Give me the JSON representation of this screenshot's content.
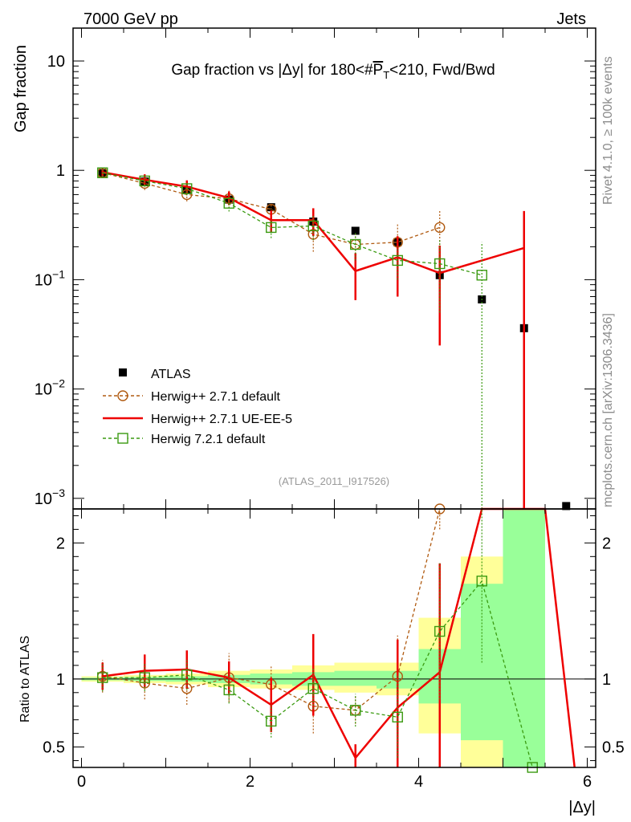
{
  "header": {
    "left": "7000 GeV pp",
    "right": "Jets"
  },
  "side_labels": {
    "top": "Rivet 4.1.0, ≥ 100k events",
    "bottom": "mcplots.cern.ch [arXiv:1306.3436]"
  },
  "watermark": "(ATLAS_2011_I917526)",
  "colors": {
    "atlas": "#000000",
    "herwig_pp_default": "#b05a10",
    "herwig_pp_ue": "#ee0000",
    "herwig7": "#3a9a10",
    "band_yellow": "#ffff99",
    "band_green": "#99ff99"
  },
  "chart_data": [
    {
      "type": "scatter",
      "panel": "main",
      "title_parts": {
        "pre": "Gap fraction vs |Δy| for 180<#",
        "pt": "P",
        "sub": "T",
        "post": "<210, Fwd/Bwd"
      },
      "ylabel": "Gap fraction",
      "yscale": "log",
      "ylim": [
        0.0008,
        20
      ],
      "xlim": [
        -0.1,
        6.1
      ],
      "y_ticks": [
        {
          "v": 10,
          "base": "10",
          "exp": ""
        },
        {
          "v": 1,
          "base": "1",
          "exp": ""
        },
        {
          "v": 0.1,
          "base": "10",
          "exp": "−1"
        },
        {
          "v": 0.01,
          "base": "10",
          "exp": "−2"
        },
        {
          "v": 0.001,
          "base": "10",
          "exp": "−3"
        }
      ],
      "series": [
        {
          "name": "ATLAS",
          "style": "data",
          "x": [
            0.25,
            0.75,
            1.25,
            1.75,
            2.25,
            2.75,
            3.25,
            3.75,
            4.25,
            4.75,
            5.25,
            5.75
          ],
          "y": [
            0.94,
            0.79,
            0.66,
            0.54,
            0.46,
            0.34,
            0.28,
            0.22,
            0.11,
            0.066,
            0.036,
            0.00085
          ]
        },
        {
          "name": "Herwig++ 2.7.1 default",
          "style": "mc-circle",
          "x": [
            0.25,
            0.75,
            1.25,
            1.75,
            2.25,
            2.75,
            3.25,
            3.75,
            4.25
          ],
          "y": [
            0.95,
            0.76,
            0.6,
            0.55,
            0.44,
            0.26,
            0.21,
            0.22,
            0.3
          ],
          "err": [
            0.08,
            0.1,
            0.08,
            0.1,
            0.06,
            0.08,
            0.05,
            0.1,
            0.13
          ]
        },
        {
          "name": "Herwig++ 2.7.1 UE-EE-5",
          "style": "mc-line",
          "x_edges": [
            0,
            0.5,
            1.0,
            1.5,
            2.0,
            2.5,
            3.0,
            3.5,
            4.0,
            4.5,
            5.0,
            5.5
          ],
          "x": [
            0.25,
            0.75,
            1.25,
            1.75,
            2.25,
            2.75,
            3.25,
            3.75,
            4.25,
            5.25
          ],
          "y": [
            0.96,
            0.82,
            0.71,
            0.56,
            0.35,
            0.35,
            0.12,
            0.16,
            0.115,
            0.195
          ],
          "err": [
            0.1,
            0.1,
            0.1,
            0.08,
            0.08,
            0.1,
            0.055,
            0.09,
            0.09,
            0.23
          ]
        },
        {
          "name": "Herwig 7.2.1 default",
          "style": "mc-square",
          "x": [
            0.25,
            0.75,
            1.25,
            1.75,
            2.25,
            2.75,
            3.25,
            3.75,
            4.25,
            4.75
          ],
          "y": [
            0.95,
            0.8,
            0.68,
            0.5,
            0.3,
            0.31,
            0.21,
            0.15,
            0.14,
            0.11
          ],
          "err": [
            0.08,
            0.08,
            0.09,
            0.08,
            0.06,
            0.08,
            0.06,
            0.05,
            0.09,
            0.11
          ]
        }
      ]
    },
    {
      "type": "line",
      "panel": "ratio",
      "ylabel": "Ratio to ATLAS",
      "xlabel": "|Δy|",
      "ylim": [
        0.35,
        2.25
      ],
      "x_ticks": [
        0,
        2,
        4,
        6
      ],
      "y_ticks": [
        0.5,
        1,
        2
      ],
      "bands": {
        "bins": [
          [
            0,
            0.5
          ],
          [
            0.5,
            1.0
          ],
          [
            1.0,
            1.5
          ],
          [
            1.5,
            2.0
          ],
          [
            2.0,
            2.5
          ],
          [
            2.5,
            3.0
          ],
          [
            3.0,
            3.5
          ],
          [
            3.5,
            4.0
          ],
          [
            4.0,
            4.5
          ],
          [
            4.5,
            5.0
          ],
          [
            5.0,
            5.5
          ]
        ],
        "yellow": [
          [
            0.98,
            1.02
          ],
          [
            0.97,
            1.03
          ],
          [
            0.96,
            1.04
          ],
          [
            0.94,
            1.06
          ],
          [
            0.93,
            1.07
          ],
          [
            0.92,
            1.1
          ],
          [
            0.9,
            1.12
          ],
          [
            0.88,
            1.12
          ],
          [
            0.6,
            1.45
          ],
          [
            0.35,
            1.9
          ],
          [
            0.35,
            2.25
          ]
        ],
        "green": [
          [
            0.99,
            1.01
          ],
          [
            0.985,
            1.015
          ],
          [
            0.98,
            1.02
          ],
          [
            0.97,
            1.03
          ],
          [
            0.96,
            1.04
          ],
          [
            0.95,
            1.05
          ],
          [
            0.95,
            1.06
          ],
          [
            0.93,
            1.06
          ],
          [
            0.82,
            1.22
          ],
          [
            0.55,
            1.7
          ],
          [
            0.35,
            2.25
          ]
        ]
      },
      "series": [
        {
          "name": "Herwig++ 2.7.1 default",
          "style": "mc-circle",
          "x": [
            0.25,
            0.75,
            1.25,
            1.75,
            2.25,
            2.75,
            3.25,
            3.75,
            4.25
          ],
          "y": [
            1.02,
            0.97,
            0.93,
            1.01,
            0.96,
            0.8,
            0.77,
            1.02,
            2.5
          ],
          "err": [
            0.12,
            0.12,
            0.12,
            0.18,
            0.14,
            0.2,
            0.1,
            0.3,
            0.4
          ]
        },
        {
          "name": "Herwig++ 2.7.1 UE-EE-5",
          "style": "mc-line",
          "x": [
            0.25,
            0.75,
            1.25,
            1.75,
            2.25,
            2.75,
            3.25,
            3.75,
            4.25,
            4.75,
            5.5,
            5.85
          ],
          "y": [
            1.02,
            1.06,
            1.07,
            1.01,
            0.81,
            1.03,
            0.42,
            0.79,
            1.05,
            2.4,
            2.4,
            0.35
          ],
          "err": [
            0.1,
            0.12,
            0.14,
            0.12,
            0.2,
            0.3,
            0.1,
            0.5,
            0.8,
            0,
            0,
            0
          ]
        },
        {
          "name": "Herwig 7.2.1 default",
          "style": "mc-square",
          "x": [
            0.25,
            0.75,
            1.25,
            1.75,
            2.25,
            2.75,
            3.25,
            3.75,
            4.25,
            4.75,
            5.35
          ],
          "y": [
            1.01,
            1.01,
            1.03,
            0.92,
            0.69,
            0.93,
            0.77,
            0.72,
            1.35,
            1.72,
            0.35
          ],
          "err": [
            0.1,
            0.1,
            0.11,
            0.1,
            0.12,
            0.15,
            0.12,
            0.3,
            0.5,
            0.6,
            0
          ]
        }
      ]
    }
  ]
}
